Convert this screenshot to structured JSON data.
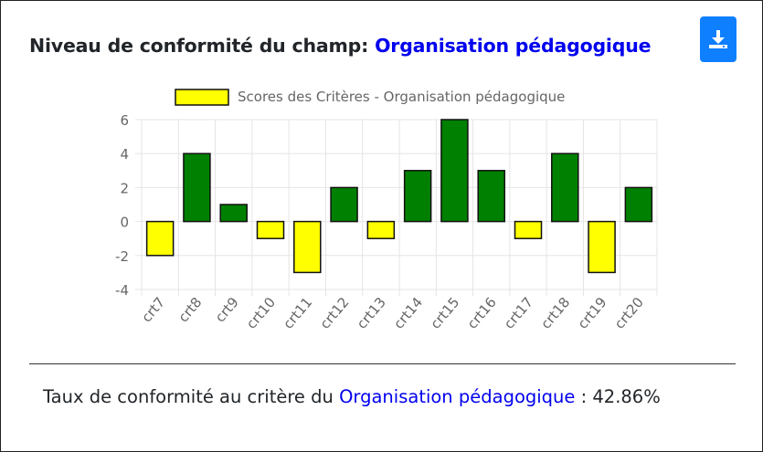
{
  "header": {
    "title_prefix": "Niveau de conformité du champ:",
    "field_name": "Organisation pédagogique",
    "download_icon": "download-icon"
  },
  "footer": {
    "rate_prefix": "Taux de conformité au critère du",
    "field_name": "Organisation pédagogique",
    "rate_separator": ":",
    "rate_value": "42.86%"
  },
  "colors": {
    "positive": "#008000",
    "negative": "#ffff00",
    "bar_border": "#111111",
    "grid": "#e5e5e5",
    "axis_text": "#666666",
    "button": "#0d7fff"
  },
  "chart_data": {
    "type": "bar",
    "legend": "Scores des Critères - Organisation pédagogique",
    "legend_position": "top",
    "categories": [
      "crt7",
      "crt8",
      "crt9",
      "crt10",
      "crt11",
      "crt12",
      "crt13",
      "crt14",
      "crt15",
      "crt16",
      "crt17",
      "crt18",
      "crt19",
      "crt20"
    ],
    "values": [
      -2,
      4,
      1,
      -1,
      -3,
      2,
      -1,
      3,
      6,
      3,
      -1,
      4,
      -3,
      2
    ],
    "ylim": [
      -4,
      6
    ],
    "yticks": [
      6,
      4,
      2,
      0,
      -2,
      -4
    ],
    "grid": true
  }
}
